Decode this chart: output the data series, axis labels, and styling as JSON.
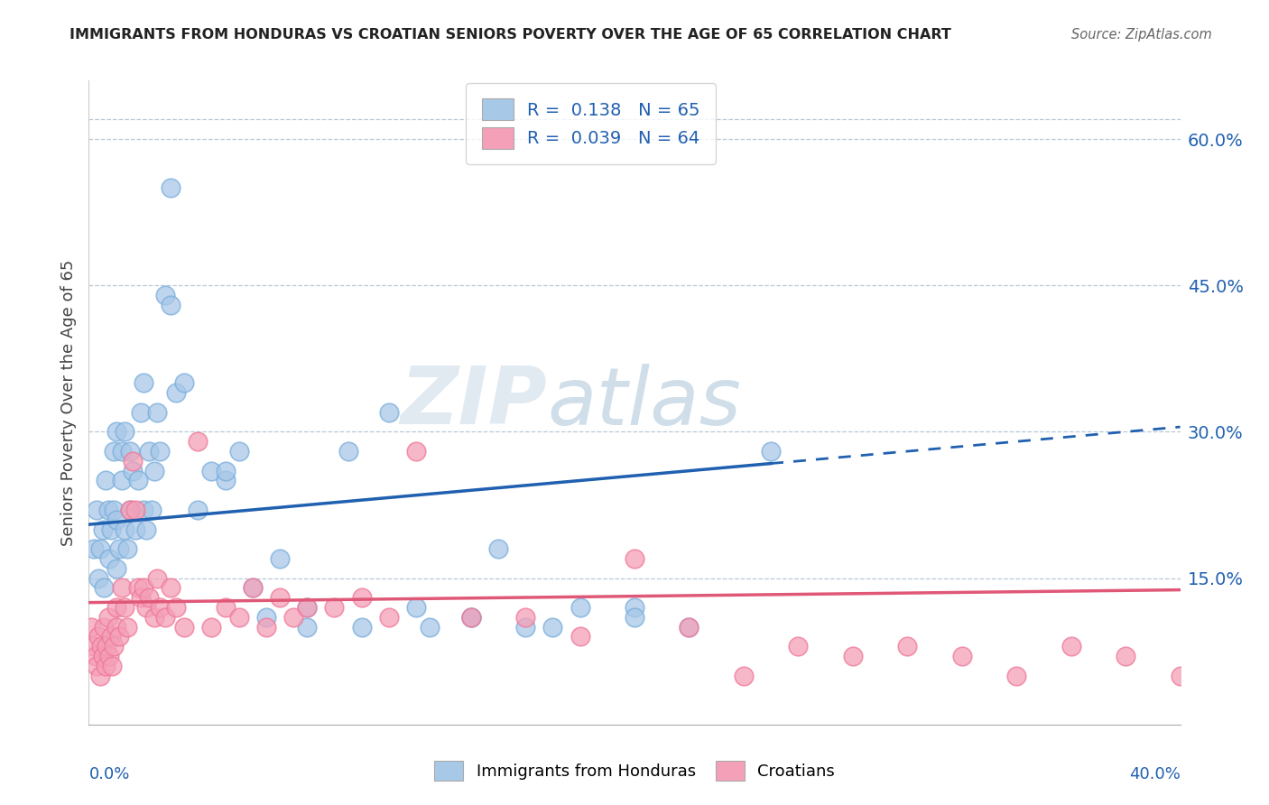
{
  "title": "IMMIGRANTS FROM HONDURAS VS CROATIAN SENIORS POVERTY OVER THE AGE OF 65 CORRELATION CHART",
  "source": "Source: ZipAtlas.com",
  "ylabel": "Seniors Poverty Over the Age of 65",
  "right_yticks": [
    15.0,
    30.0,
    45.0,
    60.0
  ],
  "xmin": 0.0,
  "xmax": 40.0,
  "ymin": 0.0,
  "ymax": 66.0,
  "blue_R": 0.138,
  "blue_N": 65,
  "pink_R": 0.039,
  "pink_N": 64,
  "blue_color": "#a8c8e8",
  "pink_color": "#f4a0b8",
  "blue_edge_color": "#7aaedc",
  "pink_edge_color": "#f07898",
  "blue_trend_color": "#2060b0",
  "pink_trend_color": "#e05878",
  "legend_label_blue": "Immigrants from Honduras",
  "legend_label_pink": "Croatians",
  "watermark_zip": "ZIP",
  "watermark_atlas": "atlas",
  "blue_line_solid_end": 25.0,
  "blue_trend_start_y": 20.5,
  "blue_trend_end_y": 30.5,
  "pink_trend_start_y": 12.5,
  "pink_trend_end_y": 13.8,
  "blue_scatter_x": [
    0.2,
    0.3,
    0.35,
    0.4,
    0.5,
    0.55,
    0.6,
    0.7,
    0.75,
    0.8,
    0.9,
    0.9,
    1.0,
    1.0,
    1.0,
    1.1,
    1.2,
    1.2,
    1.3,
    1.3,
    1.4,
    1.5,
    1.5,
    1.6,
    1.7,
    1.8,
    1.9,
    2.0,
    2.0,
    2.1,
    2.2,
    2.3,
    2.4,
    2.5,
    2.6,
    2.8,
    3.0,
    3.2,
    3.5,
    4.0,
    4.5,
    5.0,
    5.5,
    6.0,
    7.0,
    8.0,
    9.5,
    11.0,
    12.0,
    14.0,
    15.0,
    16.0,
    18.0,
    20.0,
    3.0,
    5.0,
    6.5,
    8.0,
    10.0,
    12.5,
    14.0,
    17.0,
    20.0,
    22.0,
    25.0
  ],
  "blue_scatter_y": [
    18.0,
    22.0,
    15.0,
    18.0,
    20.0,
    14.0,
    25.0,
    22.0,
    17.0,
    20.0,
    22.0,
    28.0,
    16.0,
    21.0,
    30.0,
    18.0,
    25.0,
    28.0,
    20.0,
    30.0,
    18.0,
    22.0,
    28.0,
    26.0,
    20.0,
    25.0,
    32.0,
    22.0,
    35.0,
    20.0,
    28.0,
    22.0,
    26.0,
    32.0,
    28.0,
    44.0,
    43.0,
    34.0,
    35.0,
    22.0,
    26.0,
    25.0,
    28.0,
    14.0,
    17.0,
    12.0,
    28.0,
    32.0,
    12.0,
    11.0,
    18.0,
    10.0,
    12.0,
    12.0,
    55.0,
    26.0,
    11.0,
    10.0,
    10.0,
    10.0,
    11.0,
    10.0,
    11.0,
    10.0,
    28.0
  ],
  "pink_scatter_x": [
    0.1,
    0.2,
    0.25,
    0.3,
    0.35,
    0.4,
    0.45,
    0.5,
    0.55,
    0.6,
    0.65,
    0.7,
    0.75,
    0.8,
    0.85,
    0.9,
    1.0,
    1.0,
    1.1,
    1.2,
    1.3,
    1.4,
    1.5,
    1.6,
    1.7,
    1.8,
    1.9,
    2.0,
    2.1,
    2.2,
    2.4,
    2.5,
    2.6,
    2.8,
    3.0,
    3.2,
    3.5,
    4.0,
    4.5,
    5.0,
    5.5,
    6.0,
    6.5,
    7.0,
    7.5,
    8.0,
    9.0,
    10.0,
    11.0,
    12.0,
    14.0,
    16.0,
    18.0,
    20.0,
    22.0,
    24.0,
    26.0,
    28.0,
    30.0,
    32.0,
    34.0,
    36.0,
    38.0,
    40.0
  ],
  "pink_scatter_y": [
    10.0,
    8.0,
    7.0,
    6.0,
    9.0,
    5.0,
    8.0,
    7.0,
    10.0,
    6.0,
    8.0,
    11.0,
    7.0,
    9.0,
    6.0,
    8.0,
    10.0,
    12.0,
    9.0,
    14.0,
    12.0,
    10.0,
    22.0,
    27.0,
    22.0,
    14.0,
    13.0,
    14.0,
    12.0,
    13.0,
    11.0,
    15.0,
    12.0,
    11.0,
    14.0,
    12.0,
    10.0,
    29.0,
    10.0,
    12.0,
    11.0,
    14.0,
    10.0,
    13.0,
    11.0,
    12.0,
    12.0,
    13.0,
    11.0,
    28.0,
    11.0,
    11.0,
    9.0,
    17.0,
    10.0,
    5.0,
    8.0,
    7.0,
    8.0,
    7.0,
    5.0,
    8.0,
    7.0,
    5.0
  ]
}
